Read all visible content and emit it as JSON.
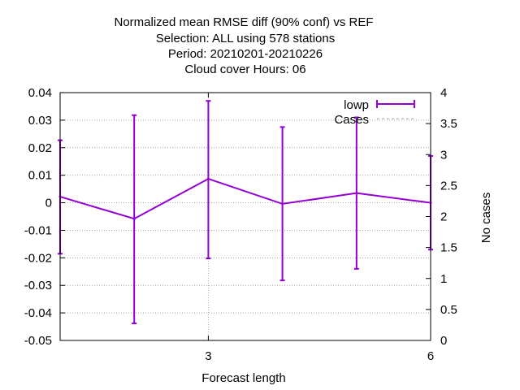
{
  "chart_data": {
    "type": "line",
    "title_lines": [
      "Normalized mean RMSE diff (90% conf) vs REF",
      "Selection: ALL using   578 stations",
      "Period: 20210201-20210226",
      "Cloud cover   Hours:  06"
    ],
    "xlabel": "Forecast length",
    "ylabel": "",
    "y2label": "No cases",
    "xlim": [
      1,
      6
    ],
    "ylim": [
      -0.05,
      0.04
    ],
    "y2lim": [
      0,
      4
    ],
    "xticks": [
      3,
      6
    ],
    "yticks": [
      0.04,
      0.03,
      0.02,
      0.01,
      0,
      -0.01,
      -0.02,
      -0.03,
      -0.04,
      -0.05
    ],
    "ytick_labels": [
      "0.04",
      "0.03",
      "0.02",
      "0.01",
      "0",
      "-0.01",
      "-0.02",
      "-0.03",
      "-0.04",
      "-0.05"
    ],
    "y2ticks": [
      4,
      3.5,
      3,
      2.5,
      2,
      1.5,
      1,
      0.5,
      0
    ],
    "y2tick_labels": [
      "4",
      "3.5",
      "3",
      "2.5",
      "2",
      "1.5",
      "1",
      "0.5",
      "0"
    ],
    "grid": true,
    "legend_position": "top-right",
    "series": [
      {
        "name": "lowp",
        "color": "#9400d3",
        "style": "errorbars-line",
        "points": [
          {
            "x": 1,
            "y": 0.0022,
            "low": -0.0185,
            "high": 0.0227
          },
          {
            "x": 2,
            "y": -0.0058,
            "low": -0.0438,
            "high": 0.0318
          },
          {
            "x": 3,
            "y": 0.0087,
            "low": -0.0202,
            "high": 0.037
          },
          {
            "x": 4,
            "y": -0.0004,
            "low": -0.0282,
            "high": 0.0275
          },
          {
            "x": 5,
            "y": 0.0035,
            "low": -0.024,
            "high": 0.031
          },
          {
            "x": 6,
            "y": 0.0,
            "low": -0.017,
            "high": 0.017
          }
        ]
      },
      {
        "name": "Cases",
        "color": "#a0a0a0",
        "style": "dashed-line",
        "axis": "y2",
        "x": [
          1,
          6
        ],
        "values": [
          4,
          4
        ]
      }
    ]
  }
}
